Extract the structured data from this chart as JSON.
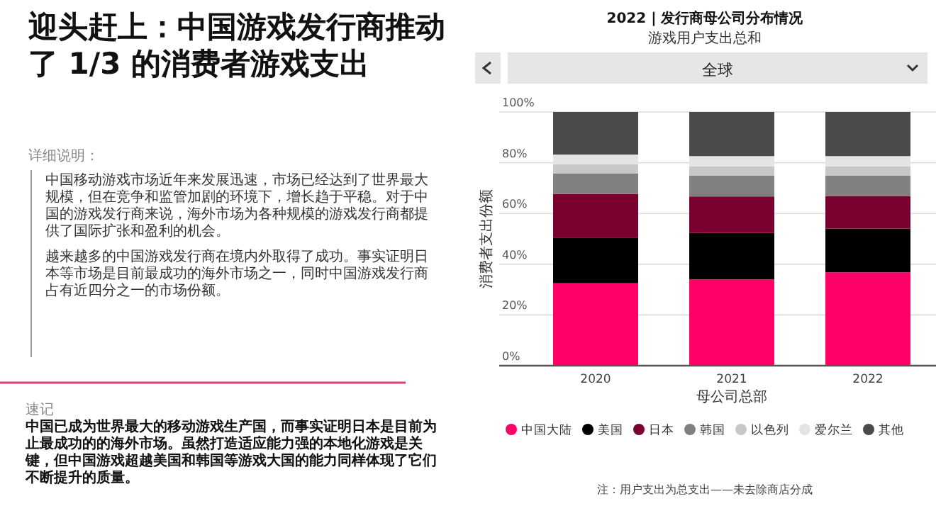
{
  "chart_data": {
    "type": "bar",
    "stacked": true,
    "title": "2022 | 发行商母公司分布情况",
    "subtitle": "游戏用户支出总和",
    "xlabel": "母公司总部",
    "ylabel": "消费者支出份额",
    "categories": [
      "2020",
      "2021",
      "2022"
    ],
    "series": [
      {
        "name": "中国大陆",
        "color": "#ff0066",
        "values": [
          32.5,
          34,
          36.8
        ]
      },
      {
        "name": "美国",
        "color": "#000000",
        "values": [
          17.8,
          18.3,
          17.2
        ]
      },
      {
        "name": "日本",
        "color": "#7a0030",
        "values": [
          17.4,
          14.4,
          12.9
        ]
      },
      {
        "name": "韩国",
        "color": "#808080",
        "values": [
          8,
          8.3,
          8.1
        ]
      },
      {
        "name": "以色列",
        "color": "#c8c8c8",
        "values": [
          3.7,
          3.5,
          3.5
        ]
      },
      {
        "name": "爱尔兰",
        "color": "#e4e4e4",
        "values": [
          3.8,
          4.1,
          4.1
        ]
      },
      {
        "name": "其他",
        "color": "#4a4a4a",
        "values": [
          16.8,
          17.4,
          17.4
        ]
      }
    ],
    "ylim": [
      0,
      100
    ],
    "yticks": [
      {
        "value": 0,
        "label": "0%"
      },
      {
        "value": 20,
        "label": "20%"
      },
      {
        "value": 40,
        "label": "40%"
      },
      {
        "value": 60,
        "label": "60%"
      },
      {
        "value": 80,
        "label": "80%"
      },
      {
        "value": 100,
        "label": "100%"
      }
    ],
    "grid": "y",
    "legend": "bottom",
    "annotations": [
      "迎头赶上：中国游戏发行商推动了 1/3 的消费者游戏支出",
      "详细说明：",
      "中国移动游戏市场近年来发展迅速，市场已经达到了世界最大规模，但在竞争和监管加剧的环境下，增长趋于平稳。对于中国的游戏发行商来说，海外市场为各种规模的游戏发行商都提供了国际扩张和盈利的机会。",
      "越来越多的中国游戏发行商在境内外取得了成功。事实证明日本等市场是目前最成功的海外市场之一，同时中国游戏发行商占有近四分之一的市场份额。",
      "速记",
      "中国已成为世界最大的移动游戏生产国，而事实证明日本是目前为止最成功的的海外市场。虽然打造适应能力强的本地化游戏是关键，但中国游戏超越美国和韩国等游戏大国的能力同样体现了它们不断提升的质量。",
      "全球",
      "注：用户支出为总支出——未去除商店分成"
    ]
  }
}
